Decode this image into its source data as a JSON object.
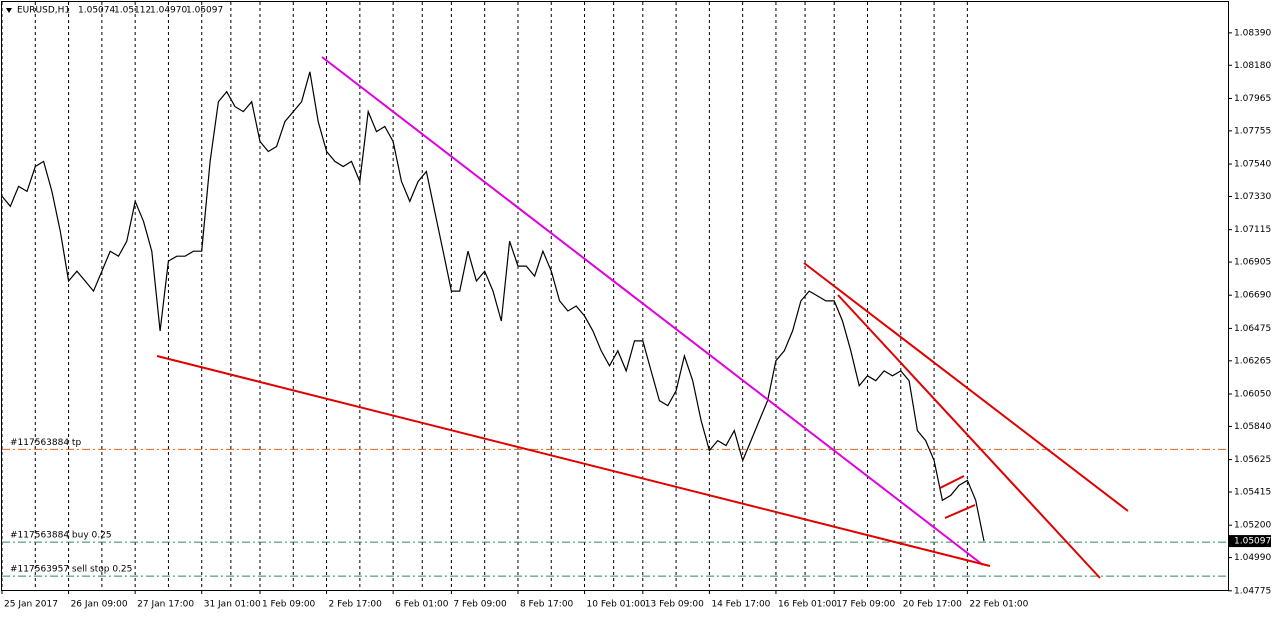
{
  "chart_data": {
    "type": "line",
    "symbol": "EURUSD,H1",
    "ohlc": [
      1.05074,
      1.05112,
      {
        "value": 1.0497,
        "label": "1.04970"
      },
      1.05097
    ],
    "color": "#000000",
    "categories": [
      "25 Jan 2017",
      null,
      null,
      null,
      null,
      null,
      null,
      null,
      "26 Jan 09:00",
      null,
      null,
      null,
      null,
      null,
      null,
      null,
      "27 Jan 17:00",
      null,
      null,
      null,
      null,
      null,
      null,
      null,
      "31 Jan 01:00",
      null,
      null,
      null,
      null,
      null,
      null,
      "1 Feb 09:00",
      null,
      null,
      null,
      null,
      null,
      null,
      null,
      "2 Feb 17:00",
      null,
      null,
      null,
      null,
      null,
      null,
      null,
      "6 Feb 01:00",
      null,
      null,
      null,
      null,
      null,
      null,
      "7 Feb 09:00",
      null,
      null,
      null,
      null,
      null,
      null,
      null,
      "8 Feb 17:00",
      null,
      null,
      null,
      null,
      null,
      null,
      null,
      "10 Feb 01:00",
      null,
      null,
      null,
      null,
      null,
      null,
      "13 Feb 09:00",
      null,
      null,
      null,
      null,
      null,
      null,
      null,
      "14 Feb 17:00",
      null,
      null,
      null,
      null,
      null,
      null,
      null,
      "16 Feb 01:00",
      null,
      null,
      null,
      null,
      null,
      null,
      "17 Feb 09:00",
      null,
      null,
      null,
      null,
      null,
      null,
      null,
      "20 Feb 17:00",
      null,
      null,
      null,
      null,
      null,
      null,
      null,
      "22 Feb 01:00",
      null,
      null
    ],
    "values": [
      1.07331,
      1.07266,
      1.07395,
      1.07363,
      1.07524,
      1.07557,
      1.07363,
      1.07104,
      1.06782,
      1.06846,
      1.06782,
      1.06717,
      1.06846,
      1.06975,
      1.06943,
      1.0704,
      1.07298,
      1.07169,
      1.06975,
      1.06459,
      1.06911,
      1.06943,
      1.06943,
      1.06975,
      1.06975,
      1.07557,
      1.07944,
      1.08009,
      1.07912,
      1.0788,
      1.07944,
      1.07686,
      1.07621,
      1.07654,
      1.07815,
      1.0788,
      1.07944,
      1.08138,
      1.07815,
      1.07621,
      1.07557,
      1.07524,
      1.07557,
      1.07427,
      1.0788,
      1.0775,
      1.07783,
      1.07686,
      1.07427,
      1.07298,
      1.07427,
      1.07492,
      1.07234,
      1.06975,
      1.06717,
      1.06717,
      1.06975,
      1.06782,
      1.06846,
      1.06717,
      1.06523,
      1.0704,
      1.06879,
      1.06879,
      1.06814,
      1.06975,
      1.06846,
      1.06653,
      1.06588,
      1.0662,
      1.06556,
      1.06459,
      1.0633,
      1.06233,
      1.0633,
      1.062,
      1.06394,
      1.06394,
      1.062,
      1.06007,
      1.05974,
      1.06071,
      1.06297,
      1.06136,
      1.05878,
      1.05684,
      1.05748,
      1.05716,
      1.05813,
      1.05619,
      1.05748,
      1.05878,
      1.06007,
      1.06265,
      1.0633,
      1.06459,
      1.06653,
      1.06717,
      1.06685,
      1.06653,
      1.06653,
      1.06523,
      1.0633,
      1.06104,
      1.06168,
      1.06136,
      1.062,
      1.06168,
      1.062,
      1.06136,
      1.05813,
      1.05748,
      1.05619,
      1.05361,
      1.05393,
      1.05458,
      1.0549,
      1.05361,
      1.05097
    ],
    "ylim": [
      1.0478,
      1.0859
    ],
    "yticks": [
      {
        "value": 1.0839,
        "label": "1.08390"
      },
      {
        "value": 1.0818,
        "label": "1.08180"
      },
      1.07965,
      1.07755,
      {
        "value": 1.0754,
        "label": "1.07540"
      },
      {
        "value": 1.0733,
        "label": "1.07330"
      },
      1.07115,
      1.06905,
      {
        "value": 1.0669,
        "label": "1.06690"
      },
      1.06475,
      1.06265,
      {
        "value": 1.0605,
        "label": "1.06050"
      },
      {
        "value": 1.0584,
        "label": "1.05840"
      },
      1.05625,
      1.05415,
      {
        "value": 1.052,
        "label": "1.05200"
      },
      {
        "value": 1.0499,
        "label": "1.04990"
      },
      1.04775
    ],
    "last_price": 1.05097,
    "orders": [
      {
        "label": "#117563884 tp",
        "price": 1.05691,
        "color": "#d2691e"
      },
      {
        "label": "#117563884 buy 0.25",
        "price": 1.0509,
        "color": "#2e8b57"
      },
      {
        "label": "#117563957 sell stop 0.25",
        "price": 1.0487,
        "color": "#2e8b57"
      }
    ],
    "grid": true
  }
}
